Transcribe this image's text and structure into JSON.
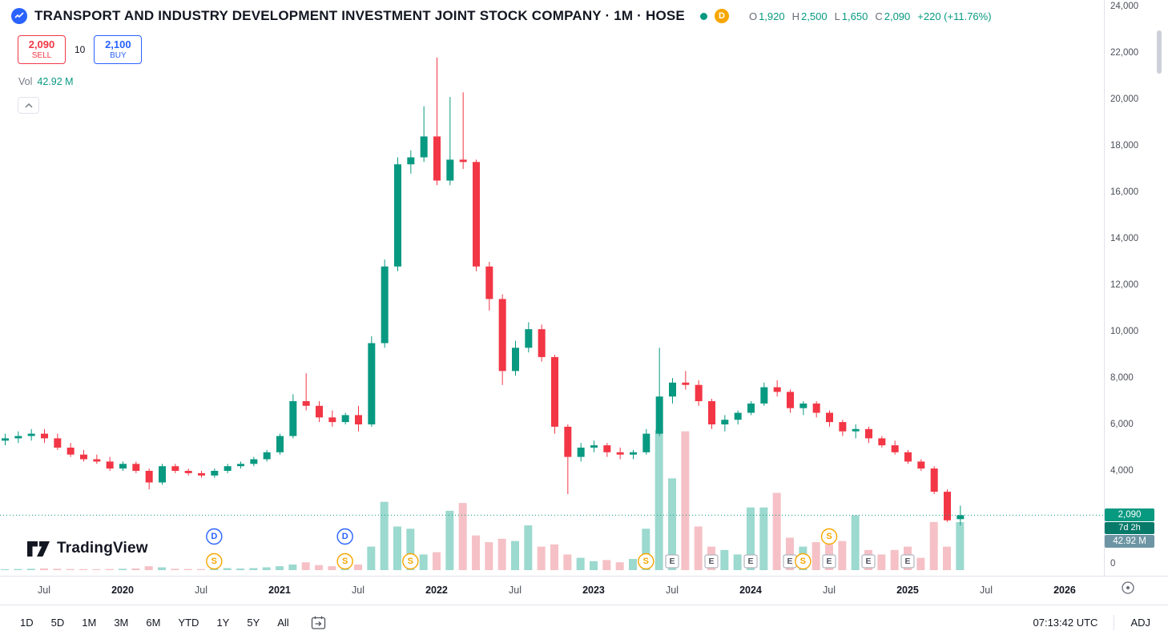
{
  "header": {
    "symbol_title": "TRANSPORT AND INDUSTRY DEVELOPMENT INVESTMENT JOINT STOCK COMPANY · 1M · HOSE",
    "data_badge": "D",
    "ohlc": {
      "o_label": "O",
      "o": "1,920",
      "h_label": "H",
      "h": "2,500",
      "l_label": "L",
      "l": "1,650",
      "c_label": "C",
      "c": "2,090",
      "change": "+220 (+11.76%)"
    },
    "sell_button": {
      "price": "2,090",
      "label": "SELL"
    },
    "spread": "10",
    "buy_button": {
      "price": "2,100",
      "label": "BUY"
    },
    "vol_label": "Vol",
    "vol_value": "42.92 M"
  },
  "price_axis": {
    "ticks": [
      {
        "label": "24,000",
        "value": 24000
      },
      {
        "label": "22,000",
        "value": 22000
      },
      {
        "label": "20,000",
        "value": 20000
      },
      {
        "label": "18,000",
        "value": 18000
      },
      {
        "label": "16,000",
        "value": 16000
      },
      {
        "label": "14,000",
        "value": 14000
      },
      {
        "label": "12,000",
        "value": 12000
      },
      {
        "label": "10,000",
        "value": 10000
      },
      {
        "label": "8,000",
        "value": 8000
      },
      {
        "label": "6,000",
        "value": 6000
      },
      {
        "label": "4,000",
        "value": 4000
      },
      {
        "label": "0",
        "value": 0
      }
    ],
    "last_price_label": "2,090",
    "countdown": "7d 2h",
    "volume_label": "42.92 M"
  },
  "time_axis": {
    "labels": [
      {
        "text": "Jul",
        "month": "2019-07"
      },
      {
        "text": "2020",
        "month": "2020-01"
      },
      {
        "text": "Jul",
        "month": "2020-07"
      },
      {
        "text": "2021",
        "month": "2021-01"
      },
      {
        "text": "Jul",
        "month": "2021-07"
      },
      {
        "text": "2022",
        "month": "2022-01"
      },
      {
        "text": "Jul",
        "month": "2022-07"
      },
      {
        "text": "2023",
        "month": "2023-01"
      },
      {
        "text": "Jul",
        "month": "2023-07"
      },
      {
        "text": "2024",
        "month": "2024-01"
      },
      {
        "text": "Jul",
        "month": "2024-07"
      },
      {
        "text": "2025",
        "month": "2025-01"
      },
      {
        "text": "Jul",
        "month": "2025-07"
      },
      {
        "text": "2026",
        "month": "2026-01"
      }
    ]
  },
  "chart_data": {
    "type": "candlestick",
    "title": "TRANSPORT AND INDUSTRY DEVELOPMENT INVESTMENT JOINT STOCK COMPANY",
    "interval": "1M",
    "exchange": "HOSE",
    "ylim": [
      0,
      24000
    ],
    "grid": false,
    "current": {
      "open": 1920,
      "high": 2500,
      "low": 1650,
      "close": 2090,
      "change": 220,
      "change_pct": 11.76,
      "volume_m": 42.92
    },
    "columns": [
      "month",
      "open",
      "high",
      "low",
      "close",
      "volume_m"
    ],
    "candles": [
      [
        "2019-04",
        5300,
        5600,
        5100,
        5400,
        0.8
      ],
      [
        "2019-05",
        5400,
        5700,
        5200,
        5500,
        1.0
      ],
      [
        "2019-06",
        5500,
        5800,
        5300,
        5600,
        1.2
      ],
      [
        "2019-07",
        5600,
        5800,
        5200,
        5400,
        1.5
      ],
      [
        "2019-08",
        5400,
        5600,
        4900,
        5000,
        1.2
      ],
      [
        "2019-09",
        5000,
        5200,
        4600,
        4700,
        1.0
      ],
      [
        "2019-10",
        4700,
        4900,
        4400,
        4500,
        0.9
      ],
      [
        "2019-11",
        4500,
        4700,
        4300,
        4400,
        0.8
      ],
      [
        "2019-12",
        4400,
        4600,
        4000,
        4100,
        1.0
      ],
      [
        "2020-01",
        4100,
        4400,
        4000,
        4300,
        1.2
      ],
      [
        "2020-02",
        4300,
        4400,
        3900,
        4000,
        1.5
      ],
      [
        "2020-03",
        4000,
        4100,
        3200,
        3500,
        3.5
      ],
      [
        "2020-04",
        3500,
        4300,
        3400,
        4200,
        2.5
      ],
      [
        "2020-05",
        4200,
        4300,
        3900,
        4000,
        1.2
      ],
      [
        "2020-06",
        4000,
        4100,
        3800,
        3900,
        1.0
      ],
      [
        "2020-07",
        3900,
        4000,
        3700,
        3800,
        0.9
      ],
      [
        "2020-08",
        3800,
        4100,
        3700,
        4000,
        1.3
      ],
      [
        "2020-09",
        4000,
        4300,
        3900,
        4200,
        1.8
      ],
      [
        "2020-10",
        4200,
        4400,
        4100,
        4300,
        1.4
      ],
      [
        "2020-11",
        4300,
        4600,
        4200,
        4500,
        1.8
      ],
      [
        "2020-12",
        4500,
        4900,
        4400,
        4800,
        2.5
      ],
      [
        "2021-01",
        4800,
        5600,
        4700,
        5500,
        3.5
      ],
      [
        "2021-02",
        5500,
        7300,
        5400,
        7000,
        5.0
      ],
      [
        "2021-03",
        7000,
        8200,
        6600,
        6800,
        7.0
      ],
      [
        "2021-04",
        6800,
        7000,
        6100,
        6300,
        4.5
      ],
      [
        "2021-05",
        6300,
        6600,
        5900,
        6100,
        3.5
      ],
      [
        "2021-06",
        6100,
        6500,
        6000,
        6400,
        3.0
      ],
      [
        "2021-07",
        6400,
        6800,
        5700,
        6000,
        5.0
      ],
      [
        "2021-08",
        6000,
        9800,
        5900,
        9500,
        21
      ],
      [
        "2021-09",
        9500,
        13100,
        9300,
        12800,
        61
      ],
      [
        "2021-10",
        12800,
        17500,
        12600,
        17200,
        39
      ],
      [
        "2021-11",
        17200,
        17800,
        16800,
        17500,
        37
      ],
      [
        "2021-12",
        17500,
        19700,
        17300,
        18400,
        14
      ],
      [
        "2022-01",
        18400,
        21800,
        16300,
        16500,
        16
      ],
      [
        "2022-02",
        16500,
        20100,
        16300,
        17400,
        53
      ],
      [
        "2022-03",
        17400,
        20300,
        17000,
        17300,
        60
      ],
      [
        "2022-04",
        17300,
        17400,
        12600,
        12800,
        31
      ],
      [
        "2022-05",
        12800,
        13000,
        10900,
        11400,
        25
      ],
      [
        "2022-06",
        11400,
        11600,
        7700,
        8300,
        28
      ],
      [
        "2022-07",
        8300,
        9600,
        8100,
        9300,
        26
      ],
      [
        "2022-08",
        9300,
        10400,
        9100,
        10100,
        40
      ],
      [
        "2022-09",
        10100,
        10300,
        8700,
        8900,
        21
      ],
      [
        "2022-10",
        8900,
        9000,
        5600,
        5900,
        23
      ],
      [
        "2022-11",
        5900,
        6000,
        3000,
        4600,
        14
      ],
      [
        "2022-12",
        4600,
        5200,
        4400,
        5000,
        11
      ],
      [
        "2023-01",
        5000,
        5300,
        4800,
        5100,
        8
      ],
      [
        "2023-02",
        5100,
        5200,
        4600,
        4800,
        9
      ],
      [
        "2023-03",
        4800,
        5000,
        4500,
        4700,
        7
      ],
      [
        "2023-04",
        4700,
        4900,
        4500,
        4800,
        10
      ],
      [
        "2023-05",
        4800,
        5800,
        4700,
        5600,
        37
      ],
      [
        "2023-06",
        5600,
        9300,
        5500,
        7200,
        125
      ],
      [
        "2023-07",
        7200,
        8000,
        6900,
        7800,
        82
      ],
      [
        "2023-08",
        7800,
        8300,
        7500,
        7700,
        124
      ],
      [
        "2023-09",
        7700,
        7900,
        6800,
        7000,
        39
      ],
      [
        "2023-10",
        7000,
        7100,
        5800,
        6000,
        21
      ],
      [
        "2023-11",
        6000,
        6400,
        5700,
        6200,
        18
      ],
      [
        "2023-12",
        6200,
        6600,
        6000,
        6500,
        14
      ],
      [
        "2024-01",
        6500,
        7000,
        6400,
        6900,
        56
      ],
      [
        "2024-02",
        6900,
        7800,
        6800,
        7600,
        56
      ],
      [
        "2024-03",
        7600,
        7900,
        7200,
        7400,
        69
      ],
      [
        "2024-04",
        7400,
        7500,
        6500,
        6700,
        29
      ],
      [
        "2024-05",
        6700,
        7000,
        6400,
        6900,
        21
      ],
      [
        "2024-06",
        6900,
        7000,
        6300,
        6500,
        25
      ],
      [
        "2024-07",
        6500,
        6600,
        5900,
        6100,
        23
      ],
      [
        "2024-08",
        6100,
        6200,
        5500,
        5700,
        26
      ],
      [
        "2024-09",
        5700,
        6000,
        5400,
        5800,
        49
      ],
      [
        "2024-10",
        5800,
        5900,
        5200,
        5400,
        18
      ],
      [
        "2024-11",
        5400,
        5500,
        5000,
        5100,
        14
      ],
      [
        "2024-12",
        5100,
        5300,
        4700,
        4800,
        18
      ],
      [
        "2025-01",
        4800,
        4900,
        4300,
        4400,
        21
      ],
      [
        "2025-02",
        4400,
        4500,
        4000,
        4100,
        11
      ],
      [
        "2025-03",
        4100,
        4200,
        3000,
        3100,
        43
      ],
      [
        "2025-04",
        3100,
        3200,
        1800,
        1870,
        21
      ],
      [
        "2025-05",
        1920,
        2500,
        1650,
        2090,
        42.92
      ]
    ],
    "markers": [
      {
        "type": "D",
        "month": "2020-08",
        "row": "upper"
      },
      {
        "type": "S",
        "month": "2020-08",
        "row": "lower"
      },
      {
        "type": "D",
        "month": "2021-06",
        "row": "upper"
      },
      {
        "type": "S",
        "month": "2021-06",
        "row": "lower"
      },
      {
        "type": "S",
        "month": "2021-11",
        "row": "lower"
      },
      {
        "type": "S",
        "month": "2023-05",
        "row": "lower"
      },
      {
        "type": "E",
        "month": "2023-07",
        "row": "lower"
      },
      {
        "type": "E",
        "month": "2023-10",
        "row": "lower"
      },
      {
        "type": "E",
        "month": "2024-01",
        "row": "lower"
      },
      {
        "type": "E",
        "month": "2024-04",
        "row": "lower"
      },
      {
        "type": "S",
        "month": "2024-05",
        "row": "lower"
      },
      {
        "type": "S",
        "month": "2024-07",
        "row": "upper"
      },
      {
        "type": "E",
        "month": "2024-07",
        "row": "lower"
      },
      {
        "type": "E",
        "month": "2024-10",
        "row": "lower"
      },
      {
        "type": "E",
        "month": "2025-01",
        "row": "lower"
      }
    ],
    "colors": {
      "up": "#089981",
      "down": "#f23645",
      "vol_up": "#9cd9cf",
      "vol_down": "#f5c1c6",
      "buy": "#2962ff",
      "sell": "#f23645",
      "badge": "#f7a600",
      "marker_dividend": "#2962ff",
      "marker_split": "#f7a600",
      "marker_earnings_border": "#b2b5be",
      "price_tag": "#089981",
      "countdown_tag": "#077a6a",
      "volume_tag": "#6d95a3"
    }
  },
  "footer": {
    "ranges": [
      "1D",
      "5D",
      "1M",
      "3M",
      "6M",
      "YTD",
      "1Y",
      "5Y",
      "All"
    ],
    "clock": "07:13:42 UTC",
    "adj_label": "ADJ"
  },
  "logo": {
    "brand": "TradingView"
  }
}
